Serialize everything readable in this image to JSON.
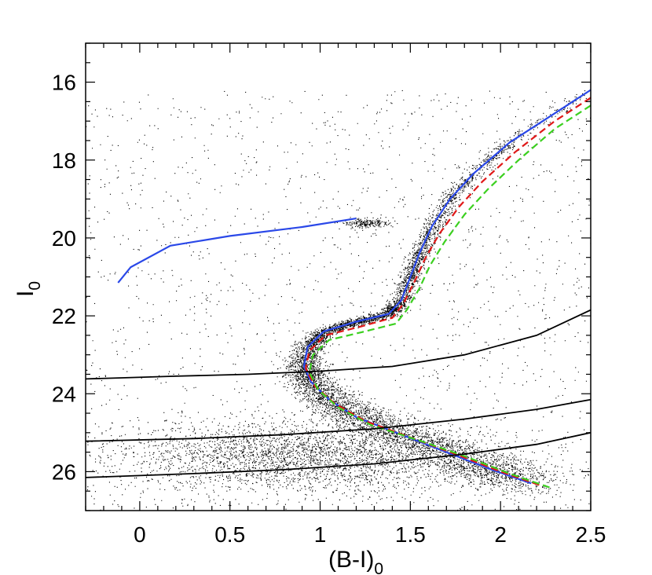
{
  "chart_data": {
    "type": "scatter",
    "title": "",
    "xlabel": "(B-I)",
    "xlabel_subscript": "0",
    "ylabel": "I",
    "ylabel_subscript": "0",
    "xlim": [
      -0.3,
      2.5
    ],
    "ylim": [
      27.0,
      15.0
    ],
    "y_inverted": true,
    "x_ticks": [
      0,
      0.5,
      1,
      1.5,
      2,
      2.5
    ],
    "x_tick_labels": [
      "0",
      "0.5",
      "1",
      "1.5",
      "2",
      "2.5"
    ],
    "y_ticks": [
      16,
      18,
      20,
      22,
      24,
      26
    ],
    "y_tick_labels": [
      "16",
      "18",
      "20",
      "22",
      "24",
      "26"
    ],
    "grid": false,
    "legend": "none",
    "point_color": "#000000",
    "series": [
      {
        "kind": "horizontal-branch",
        "color": "#2a48e8",
        "style": "solid",
        "points": [
          [
            -0.12,
            21.15
          ],
          [
            -0.05,
            20.75
          ],
          [
            0.17,
            20.2
          ],
          [
            0.5,
            19.95
          ],
          [
            0.9,
            19.72
          ],
          [
            1.2,
            19.5
          ]
        ]
      },
      {
        "kind": "isochrone",
        "color": "#2a48e8",
        "style": "solid",
        "points": [
          [
            2.5,
            16.2
          ],
          [
            2.3,
            16.8
          ],
          [
            2.05,
            17.55
          ],
          [
            1.85,
            18.35
          ],
          [
            1.72,
            19.0
          ],
          [
            1.62,
            19.7
          ],
          [
            1.55,
            20.4
          ],
          [
            1.5,
            21.0
          ],
          [
            1.45,
            21.6
          ],
          [
            1.38,
            21.95
          ],
          [
            1.2,
            22.15
          ],
          [
            1.02,
            22.4
          ],
          [
            0.93,
            22.8
          ],
          [
            0.91,
            23.3
          ],
          [
            0.95,
            23.7
          ],
          [
            1.05,
            24.15
          ],
          [
            1.2,
            24.6
          ],
          [
            1.45,
            25.05
          ],
          [
            1.7,
            25.5
          ],
          [
            1.95,
            25.95
          ],
          [
            2.17,
            26.3
          ]
        ]
      },
      {
        "kind": "isochrone",
        "color": "#e01818",
        "style": "dashed",
        "points": [
          [
            2.5,
            16.4
          ],
          [
            2.3,
            17.0
          ],
          [
            2.08,
            17.8
          ],
          [
            1.9,
            18.55
          ],
          [
            1.77,
            19.2
          ],
          [
            1.66,
            19.9
          ],
          [
            1.58,
            20.55
          ],
          [
            1.52,
            21.15
          ],
          [
            1.46,
            21.7
          ],
          [
            1.4,
            22.05
          ],
          [
            1.22,
            22.28
          ],
          [
            1.03,
            22.5
          ],
          [
            0.94,
            22.9
          ],
          [
            0.92,
            23.35
          ],
          [
            0.97,
            23.8
          ],
          [
            1.08,
            24.25
          ],
          [
            1.25,
            24.7
          ],
          [
            1.5,
            25.12
          ],
          [
            1.75,
            25.55
          ],
          [
            2.0,
            26.0
          ],
          [
            2.22,
            26.35
          ]
        ]
      },
      {
        "kind": "isochrone",
        "color": "#3cd020",
        "style": "dashed",
        "points": [
          [
            2.5,
            16.6
          ],
          [
            2.3,
            17.2
          ],
          [
            2.1,
            18.0
          ],
          [
            1.93,
            18.75
          ],
          [
            1.8,
            19.4
          ],
          [
            1.69,
            20.1
          ],
          [
            1.61,
            20.7
          ],
          [
            1.55,
            21.3
          ],
          [
            1.48,
            21.85
          ],
          [
            1.42,
            22.2
          ],
          [
            1.23,
            22.42
          ],
          [
            1.05,
            22.62
          ],
          [
            0.96,
            23.0
          ],
          [
            0.94,
            23.45
          ],
          [
            0.99,
            23.9
          ],
          [
            1.1,
            24.35
          ],
          [
            1.28,
            24.8
          ],
          [
            1.55,
            25.2
          ],
          [
            1.8,
            25.6
          ],
          [
            2.05,
            26.05
          ],
          [
            2.28,
            26.42
          ]
        ]
      },
      {
        "kind": "completeness-curve",
        "color": "#000000",
        "style": "solid",
        "points": [
          [
            -0.3,
            23.62
          ],
          [
            0.2,
            23.55
          ],
          [
            0.6,
            23.5
          ],
          [
            1.0,
            23.42
          ],
          [
            1.4,
            23.3
          ],
          [
            1.8,
            23.0
          ],
          [
            2.2,
            22.5
          ],
          [
            2.5,
            21.85
          ]
        ]
      },
      {
        "kind": "completeness-curve",
        "color": "#000000",
        "style": "solid",
        "points": [
          [
            -0.3,
            25.22
          ],
          [
            0.3,
            25.15
          ],
          [
            0.8,
            25.05
          ],
          [
            1.3,
            24.9
          ],
          [
            1.8,
            24.65
          ],
          [
            2.2,
            24.4
          ],
          [
            2.5,
            24.15
          ]
        ]
      },
      {
        "kind": "completeness-curve",
        "color": "#000000",
        "style": "solid",
        "points": [
          [
            -0.3,
            26.15
          ],
          [
            0.3,
            26.05
          ],
          [
            0.8,
            25.95
          ],
          [
            1.3,
            25.8
          ],
          [
            1.8,
            25.55
          ],
          [
            2.2,
            25.3
          ],
          [
            2.5,
            25.0
          ]
        ]
      }
    ]
  }
}
